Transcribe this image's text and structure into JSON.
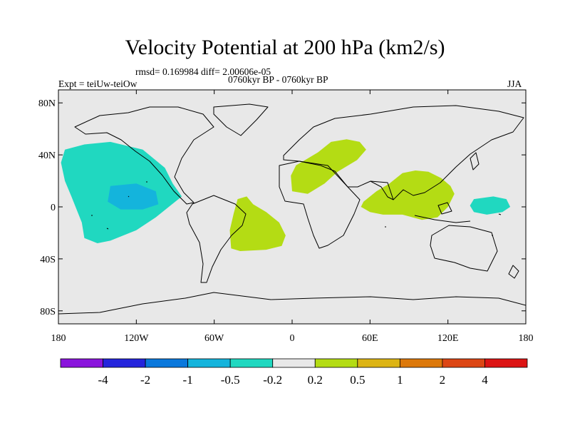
{
  "title": "Velocity Potential at 200 hPa (km2/s)",
  "stats": "rmsd= 0.169984 diff= 2.00606e-05",
  "experiment": "Expt = teiUw-teiOw",
  "period": "0760kyr BP - 0760kyr BP",
  "season": "JJA",
  "map": {
    "projection": "cylindrical equidistant",
    "lon_range": [
      -180,
      180
    ],
    "lat_range": [
      -90,
      90
    ],
    "x_ticks": [
      {
        "lon": -180,
        "label": "180"
      },
      {
        "lon": -120,
        "label": "120W"
      },
      {
        "lon": -60,
        "label": "60W"
      },
      {
        "lon": 0,
        "label": "0"
      },
      {
        "lon": 60,
        "label": "60E"
      },
      {
        "lon": 120,
        "label": "120E"
      },
      {
        "lon": 180,
        "label": "180"
      }
    ],
    "y_ticks": [
      {
        "lat": 80,
        "label": "80N"
      },
      {
        "lat": 40,
        "label": "40N"
      },
      {
        "lat": 0,
        "label": "0"
      },
      {
        "lat": -40,
        "label": "40S"
      },
      {
        "lat": -80,
        "label": "80S"
      }
    ],
    "background_color": "#e8e8e8",
    "anomaly_regions": [
      {
        "name": "eastern-pacific",
        "level": "-0.5 to -0.2",
        "color": "#20d8c0",
        "polygon": [
          [
            -175,
            44
          ],
          [
            -160,
            48
          ],
          [
            -140,
            50
          ],
          [
            -115,
            44
          ],
          [
            -98,
            30
          ],
          [
            -92,
            18
          ],
          [
            -85,
            8
          ],
          [
            -95,
            0
          ],
          [
            -105,
            -8
          ],
          [
            -120,
            -18
          ],
          [
            -140,
            -26
          ],
          [
            -150,
            -28
          ],
          [
            -160,
            -24
          ],
          [
            -162,
            -12
          ],
          [
            -170,
            8
          ],
          [
            -175,
            20
          ],
          [
            -178,
            34
          ]
        ]
      },
      {
        "name": "eastern-pacific-core",
        "level": "-1 to -0.5",
        "color": "#14b4dc",
        "polygon": [
          [
            -140,
            16
          ],
          [
            -120,
            18
          ],
          [
            -105,
            12
          ],
          [
            -103,
            2
          ],
          [
            -115,
            -2
          ],
          [
            -132,
            -2
          ],
          [
            -142,
            4
          ]
        ]
      },
      {
        "name": "western-pacific",
        "level": "-0.5 to -0.2",
        "color": "#20d8c0",
        "polygon": [
          [
            140,
            6
          ],
          [
            155,
            8
          ],
          [
            165,
            6
          ],
          [
            168,
            0
          ],
          [
            162,
            -4
          ],
          [
            150,
            -6
          ],
          [
            140,
            -4
          ],
          [
            137,
            1
          ]
        ]
      },
      {
        "name": "south-atlantic",
        "level": "0.2 to 0.5",
        "color": "#b4dc14",
        "polygon": [
          [
            -42,
            6
          ],
          [
            -35,
            8
          ],
          [
            -30,
            2
          ],
          [
            -20,
            -4
          ],
          [
            -10,
            -12
          ],
          [
            -5,
            -22
          ],
          [
            -8,
            -30
          ],
          [
            -20,
            -33
          ],
          [
            -40,
            -34
          ],
          [
            -47,
            -32
          ],
          [
            -48,
            -18
          ],
          [
            -45,
            -5
          ]
        ]
      },
      {
        "name": "mediterranean-north-africa",
        "level": "0.2 to 0.5",
        "color": "#b4dc14",
        "polygon": [
          [
            10,
            36
          ],
          [
            20,
            42
          ],
          [
            30,
            50
          ],
          [
            42,
            52
          ],
          [
            52,
            50
          ],
          [
            57,
            44
          ],
          [
            50,
            36
          ],
          [
            35,
            27
          ],
          [
            25,
            18
          ],
          [
            12,
            10
          ],
          [
            0,
            12
          ],
          [
            -1,
            24
          ],
          [
            3,
            32
          ]
        ]
      },
      {
        "name": "indian-ocean-asia",
        "level": "0.2 to 0.5",
        "color": "#b4dc14",
        "polygon": [
          [
            55,
            4
          ],
          [
            65,
            12
          ],
          [
            75,
            18
          ],
          [
            85,
            26
          ],
          [
            95,
            28
          ],
          [
            105,
            27
          ],
          [
            115,
            22
          ],
          [
            122,
            16
          ],
          [
            125,
            10
          ],
          [
            120,
            0
          ],
          [
            112,
            -8
          ],
          [
            100,
            -10
          ],
          [
            85,
            -6
          ],
          [
            70,
            -6
          ],
          [
            60,
            -4
          ],
          [
            53,
            0
          ]
        ]
      }
    ]
  },
  "colorbar": {
    "levels": [
      "-4",
      "-2",
      "-1",
      "-0.5",
      "-0.2",
      "0.2",
      "0.5",
      "1",
      "2",
      "4"
    ],
    "colors": [
      "#8a14dc",
      "#2424dc",
      "#0a78dc",
      "#14b4dc",
      "#20d8c0",
      "#e8e8e8",
      "#b4dc14",
      "#dcb414",
      "#dc780a",
      "#dc4614",
      "#dc1414"
    ]
  }
}
